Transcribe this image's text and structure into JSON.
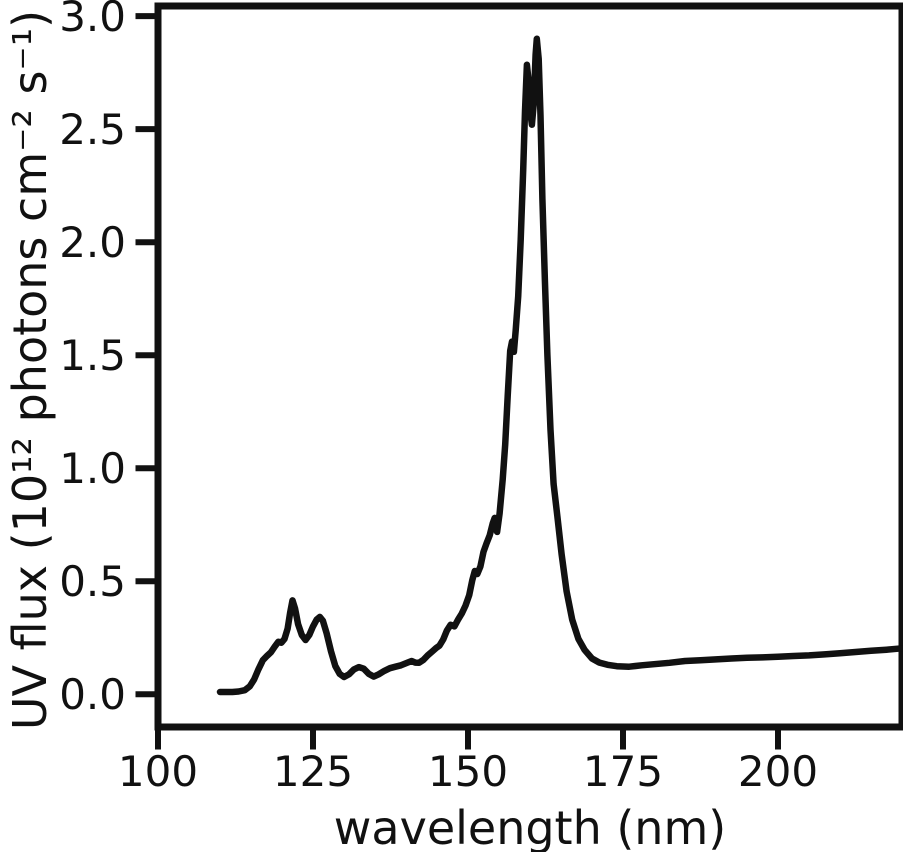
{
  "figure": {
    "background": "#ffffff",
    "ink_color": "#111111",
    "spine_width": 7,
    "tick_width": 6,
    "tick_length": 20
  },
  "chart_data": {
    "type": "line",
    "title": "",
    "xlabel": "wavelength (nm)",
    "ylabel": "UV flux (10¹² photons cm⁻² s⁻¹)",
    "xlim": [
      100,
      220
    ],
    "ylim": [
      -0.145,
      3.045
    ],
    "x_ticks": [
      100,
      125,
      150,
      175,
      200
    ],
    "x_tick_labels": [
      "100",
      "125",
      "150",
      "175",
      "200"
    ],
    "y_ticks": [
      0.0,
      0.5,
      1.0,
      1.5,
      2.0,
      2.5,
      3.0
    ],
    "y_tick_labels": [
      "0.0",
      "0.5",
      "1.0",
      "1.5",
      "2.0",
      "2.5",
      "3.0"
    ],
    "grid": false,
    "legend": null,
    "series": [
      {
        "name": "UV flux",
        "color": "#111111",
        "linewidth": 6.5,
        "points": [
          [
            110.0,
            0.01
          ],
          [
            111.0,
            0.01
          ],
          [
            112.0,
            0.01
          ],
          [
            113.0,
            0.012
          ],
          [
            114.0,
            0.018
          ],
          [
            114.8,
            0.035
          ],
          [
            115.5,
            0.065
          ],
          [
            116.2,
            0.11
          ],
          [
            116.9,
            0.15
          ],
          [
            117.6,
            0.17
          ],
          [
            118.2,
            0.185
          ],
          [
            118.8,
            0.21
          ],
          [
            119.4,
            0.232
          ],
          [
            119.9,
            0.228
          ],
          [
            120.4,
            0.245
          ],
          [
            120.9,
            0.29
          ],
          [
            121.3,
            0.36
          ],
          [
            121.7,
            0.415
          ],
          [
            122.1,
            0.38
          ],
          [
            122.6,
            0.31
          ],
          [
            123.2,
            0.262
          ],
          [
            123.8,
            0.24
          ],
          [
            124.4,
            0.262
          ],
          [
            125.0,
            0.3
          ],
          [
            125.6,
            0.33
          ],
          [
            126.1,
            0.342
          ],
          [
            126.6,
            0.325
          ],
          [
            127.2,
            0.27
          ],
          [
            127.9,
            0.19
          ],
          [
            128.6,
            0.125
          ],
          [
            129.3,
            0.09
          ],
          [
            130.0,
            0.076
          ],
          [
            130.8,
            0.088
          ],
          [
            131.6,
            0.11
          ],
          [
            132.4,
            0.12
          ],
          [
            133.2,
            0.113
          ],
          [
            134.0,
            0.09
          ],
          [
            134.8,
            0.078
          ],
          [
            135.6,
            0.088
          ],
          [
            136.5,
            0.103
          ],
          [
            137.4,
            0.115
          ],
          [
            138.3,
            0.122
          ],
          [
            139.2,
            0.128
          ],
          [
            140.1,
            0.138
          ],
          [
            140.9,
            0.147
          ],
          [
            141.5,
            0.14
          ],
          [
            142.1,
            0.139
          ],
          [
            142.8,
            0.152
          ],
          [
            143.5,
            0.172
          ],
          [
            144.2,
            0.188
          ],
          [
            144.8,
            0.203
          ],
          [
            145.4,
            0.215
          ],
          [
            146.0,
            0.242
          ],
          [
            146.6,
            0.282
          ],
          [
            147.2,
            0.307
          ],
          [
            147.8,
            0.3
          ],
          [
            148.4,
            0.33
          ],
          [
            149.0,
            0.357
          ],
          [
            149.6,
            0.392
          ],
          [
            150.2,
            0.438
          ],
          [
            150.7,
            0.505
          ],
          [
            151.1,
            0.545
          ],
          [
            151.5,
            0.532
          ],
          [
            152.0,
            0.565
          ],
          [
            152.5,
            0.63
          ],
          [
            153.0,
            0.668
          ],
          [
            153.5,
            0.703
          ],
          [
            154.0,
            0.757
          ],
          [
            154.3,
            0.78
          ],
          [
            154.7,
            0.718
          ],
          [
            155.1,
            0.8
          ],
          [
            155.6,
            0.95
          ],
          [
            156.0,
            1.105
          ],
          [
            156.4,
            1.32
          ],
          [
            156.8,
            1.52
          ],
          [
            157.1,
            1.56
          ],
          [
            157.4,
            1.515
          ],
          [
            157.7,
            1.61
          ],
          [
            158.1,
            1.76
          ],
          [
            158.5,
            2.01
          ],
          [
            158.9,
            2.32
          ],
          [
            159.2,
            2.58
          ],
          [
            159.5,
            2.785
          ],
          [
            159.8,
            2.705
          ],
          [
            160.1,
            2.565
          ],
          [
            160.3,
            2.52
          ],
          [
            160.6,
            2.61
          ],
          [
            160.9,
            2.83
          ],
          [
            161.1,
            2.9
          ],
          [
            161.4,
            2.81
          ],
          [
            161.7,
            2.56
          ],
          [
            162.0,
            2.19
          ],
          [
            162.4,
            1.83
          ],
          [
            162.8,
            1.5
          ],
          [
            163.3,
            1.17
          ],
          [
            163.8,
            0.93
          ],
          [
            164.4,
            0.79
          ],
          [
            165.1,
            0.62
          ],
          [
            165.9,
            0.455
          ],
          [
            166.8,
            0.33
          ],
          [
            167.8,
            0.245
          ],
          [
            168.8,
            0.196
          ],
          [
            170.0,
            0.158
          ],
          [
            171.2,
            0.14
          ],
          [
            172.5,
            0.13
          ],
          [
            174.0,
            0.124
          ],
          [
            176.0,
            0.122
          ],
          [
            178.0,
            0.128
          ],
          [
            180.0,
            0.133
          ],
          [
            182.5,
            0.139
          ],
          [
            185.0,
            0.147
          ],
          [
            187.5,
            0.15
          ],
          [
            190.0,
            0.154
          ],
          [
            192.5,
            0.158
          ],
          [
            195.0,
            0.161
          ],
          [
            197.5,
            0.163
          ],
          [
            200.0,
            0.166
          ],
          [
            202.5,
            0.169
          ],
          [
            205.0,
            0.172
          ],
          [
            207.5,
            0.176
          ],
          [
            210.0,
            0.181
          ],
          [
            212.5,
            0.187
          ],
          [
            215.0,
            0.192
          ],
          [
            217.5,
            0.197
          ],
          [
            220.0,
            0.203
          ]
        ]
      }
    ]
  }
}
